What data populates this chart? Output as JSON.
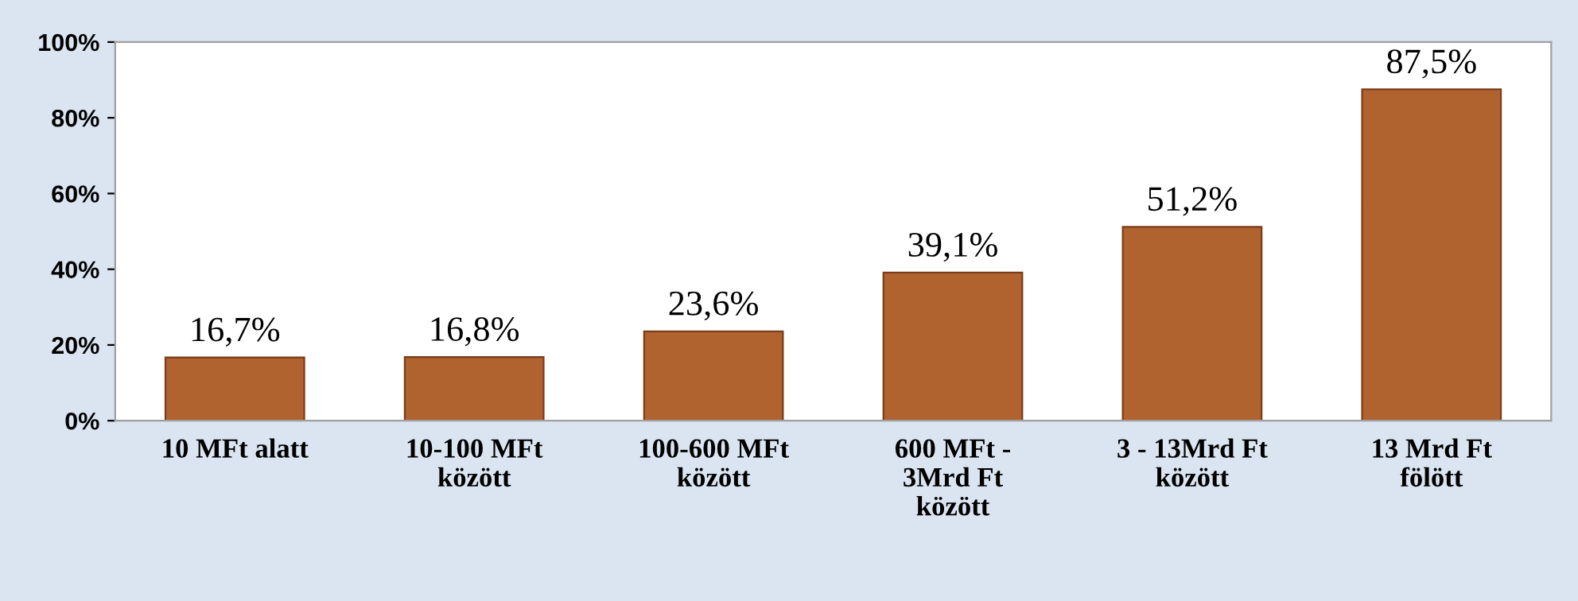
{
  "chart_data": {
    "type": "bar",
    "categories": [
      "10 MFt alatt",
      "10-100 MFt\nközött",
      "100-600 MFt\nközött",
      "600 MFt -\n3Mrd Ft\nközött",
      "3 - 13Mrd Ft\nközött",
      "13 Mrd Ft\nfölött"
    ],
    "values": [
      16.7,
      16.8,
      23.6,
      39.1,
      51.2,
      87.5
    ],
    "value_labels": [
      "16,7%",
      "16,8%",
      "23,6%",
      "39,1%",
      "51,2%",
      "87,5%"
    ],
    "color": "#b0622f",
    "ylim": [
      0,
      100
    ],
    "yticks": [
      {
        "value": 0,
        "label": "0%"
      },
      {
        "value": 20,
        "label": "20%"
      },
      {
        "value": 40,
        "label": "40%"
      },
      {
        "value": 60,
        "label": "60%"
      },
      {
        "value": 80,
        "label": "80%"
      },
      {
        "value": 100,
        "label": "100%"
      }
    ],
    "grid": false
  }
}
